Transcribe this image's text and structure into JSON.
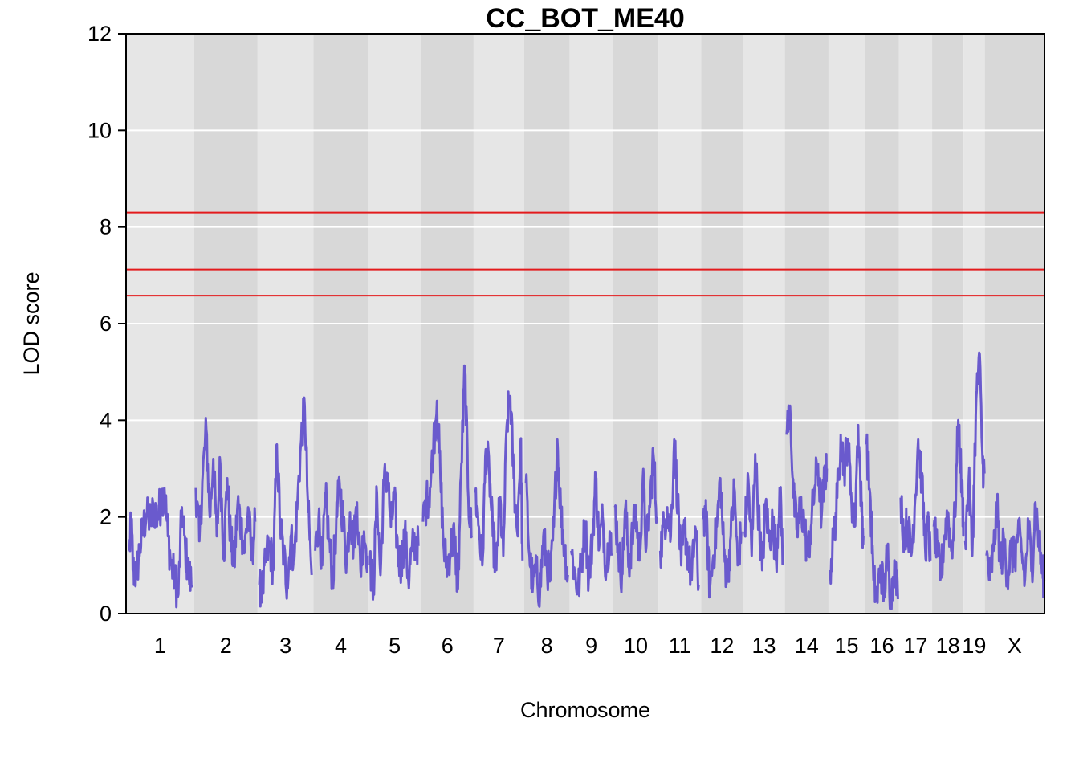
{
  "chart_data": {
    "type": "line",
    "title": "CC_BOT_ME40",
    "xlabel": "Chromosome",
    "ylabel": "LOD score",
    "ylim": [
      0,
      12
    ],
    "y_ticks": [
      0,
      2,
      4,
      6,
      8,
      10,
      12
    ],
    "gridlines": true,
    "legend": "none",
    "colors": {
      "series": "#6a5acd",
      "threshold": "#e31a1c",
      "band_light": "#e6e6e6",
      "band_dark": "#d8d8d8",
      "grid": "#ffffff"
    },
    "thresholds": [
      8.3,
      7.12,
      6.58
    ],
    "chromosomes": [
      {
        "label": "1",
        "start": 0,
        "end": 195,
        "peaks": [
          [
            10,
            1.3
          ],
          [
            15,
            1.9
          ],
          [
            20,
            0.9
          ],
          [
            30,
            0.8
          ],
          [
            40,
            1.4
          ],
          [
            50,
            1.8
          ],
          [
            60,
            2.1
          ],
          [
            70,
            1.9
          ],
          [
            80,
            2.2
          ],
          [
            90,
            2.0
          ],
          [
            100,
            2.3
          ],
          [
            110,
            2.6
          ],
          [
            120,
            1.6
          ],
          [
            130,
            1.0
          ],
          [
            140,
            0.7
          ],
          [
            150,
            0.4
          ],
          [
            160,
            2.2
          ],
          [
            170,
            1.3
          ],
          [
            180,
            0.8
          ],
          [
            190,
            0.6
          ]
        ]
      },
      {
        "label": "2",
        "start": 195,
        "end": 377,
        "peaks": [
          [
            5,
            2.6
          ],
          [
            15,
            1.5
          ],
          [
            25,
            2.9
          ],
          [
            35,
            3.8
          ],
          [
            45,
            2.0
          ],
          [
            55,
            3.2
          ],
          [
            65,
            1.6
          ],
          [
            75,
            3.1
          ],
          [
            85,
            1.2
          ],
          [
            95,
            2.8
          ],
          [
            105,
            1.5
          ],
          [
            115,
            1.0
          ],
          [
            125,
            2.3
          ],
          [
            135,
            1.8
          ],
          [
            145,
            1.3
          ],
          [
            155,
            2.2
          ],
          [
            165,
            1.1
          ],
          [
            175,
            1.9
          ]
        ]
      },
      {
        "label": "3",
        "start": 377,
        "end": 537,
        "peaks": [
          [
            5,
            0.6
          ],
          [
            15,
            0.5
          ],
          [
            25,
            1.2
          ],
          [
            35,
            1.4
          ],
          [
            45,
            0.9
          ],
          [
            55,
            3.5
          ],
          [
            65,
            1.8
          ],
          [
            75,
            1.2
          ],
          [
            85,
            0.6
          ],
          [
            95,
            1.6
          ],
          [
            105,
            1.1
          ],
          [
            115,
            2.4
          ],
          [
            125,
            3.6
          ],
          [
            135,
            4.3
          ],
          [
            145,
            2.1
          ],
          [
            155,
            0.8
          ]
        ]
      },
      {
        "label": "4",
        "start": 537,
        "end": 694,
        "peaks": [
          [
            5,
            1.3
          ],
          [
            15,
            2.0
          ],
          [
            25,
            1.0
          ],
          [
            35,
            2.4
          ],
          [
            45,
            1.5
          ],
          [
            55,
            0.7
          ],
          [
            65,
            1.8
          ],
          [
            75,
            2.7
          ],
          [
            85,
            1.9
          ],
          [
            95,
            1.1
          ],
          [
            105,
            2.1
          ],
          [
            115,
            1.4
          ],
          [
            125,
            2.3
          ],
          [
            135,
            0.9
          ],
          [
            145,
            1.7
          ],
          [
            155,
            1.2
          ]
        ]
      },
      {
        "label": "5",
        "start": 694,
        "end": 846,
        "peaks": [
          [
            5,
            1.0
          ],
          [
            15,
            0.5
          ],
          [
            25,
            2.5
          ],
          [
            35,
            0.8
          ],
          [
            45,
            2.7
          ],
          [
            55,
            2.9
          ],
          [
            65,
            1.8
          ],
          [
            75,
            2.4
          ],
          [
            85,
            1.2
          ],
          [
            95,
            1.0
          ],
          [
            105,
            1.7
          ],
          [
            115,
            0.7
          ],
          [
            125,
            1.3
          ],
          [
            135,
            1.5
          ],
          [
            145,
            1.4
          ]
        ]
      },
      {
        "label": "6",
        "start": 846,
        "end": 996,
        "peaks": [
          [
            5,
            1.9
          ],
          [
            15,
            2.3
          ],
          [
            25,
            2.6
          ],
          [
            35,
            3.5
          ],
          [
            45,
            4.4
          ],
          [
            55,
            2.8
          ],
          [
            65,
            1.3
          ],
          [
            75,
            1.0
          ],
          [
            85,
            1.4
          ],
          [
            95,
            1.6
          ],
          [
            105,
            0.5
          ],
          [
            115,
            3.1
          ],
          [
            125,
            5.1
          ],
          [
            135,
            2.4
          ],
          [
            145,
            1.6
          ]
        ]
      },
      {
        "label": "7",
        "start": 996,
        "end": 1141,
        "peaks": [
          [
            5,
            2.5
          ],
          [
            15,
            1.8
          ],
          [
            25,
            1.0
          ],
          [
            35,
            3.4
          ],
          [
            45,
            2.9
          ],
          [
            55,
            1.6
          ],
          [
            65,
            0.9
          ],
          [
            75,
            2.4
          ],
          [
            85,
            1.2
          ],
          [
            95,
            3.9
          ],
          [
            105,
            4.5
          ],
          [
            115,
            2.8
          ],
          [
            125,
            1.7
          ],
          [
            135,
            3.6
          ],
          [
            140,
            1.1
          ]
        ]
      },
      {
        "label": "8",
        "start": 1141,
        "end": 1271,
        "peaks": [
          [
            5,
            2.7
          ],
          [
            15,
            1.2
          ],
          [
            25,
            0.6
          ],
          [
            35,
            0.9
          ],
          [
            45,
            0.4
          ],
          [
            55,
            1.6
          ],
          [
            65,
            1.0
          ],
          [
            75,
            0.7
          ],
          [
            85,
            1.8
          ],
          [
            95,
            3.6
          ],
          [
            105,
            2.1
          ],
          [
            115,
            1.4
          ],
          [
            125,
            0.8
          ]
        ]
      },
      {
        "label": "9",
        "start": 1271,
        "end": 1396,
        "peaks": [
          [
            5,
            1.3
          ],
          [
            15,
            0.8
          ],
          [
            25,
            0.5
          ],
          [
            35,
            1.1
          ],
          [
            45,
            1.9
          ],
          [
            55,
            0.7
          ],
          [
            65,
            1.5
          ],
          [
            75,
            2.8
          ],
          [
            85,
            1.4
          ],
          [
            95,
            2.0
          ],
          [
            105,
            0.9
          ],
          [
            115,
            1.7
          ],
          [
            120,
            1.2
          ]
        ]
      },
      {
        "label": "10",
        "start": 1396,
        "end": 1526,
        "peaks": [
          [
            5,
            2.2
          ],
          [
            15,
            1.3
          ],
          [
            25,
            0.8
          ],
          [
            35,
            2.2
          ],
          [
            45,
            1.0
          ],
          [
            55,
            1.6
          ],
          [
            65,
            2.1
          ],
          [
            75,
            1.1
          ],
          [
            85,
            2.8
          ],
          [
            95,
            1.4
          ],
          [
            105,
            2.2
          ],
          [
            115,
            3.3
          ],
          [
            125,
            2.0
          ]
        ]
      },
      {
        "label": "11",
        "start": 1526,
        "end": 1648,
        "peaks": [
          [
            5,
            1.3
          ],
          [
            15,
            1.8
          ],
          [
            25,
            2.2
          ],
          [
            35,
            1.6
          ],
          [
            45,
            3.6
          ],
          [
            55,
            2.3
          ],
          [
            65,
            1.0
          ],
          [
            75,
            1.8
          ],
          [
            85,
            1.2
          ],
          [
            95,
            0.7
          ],
          [
            105,
            1.8
          ],
          [
            115,
            0.6
          ]
        ]
      },
      {
        "label": "12",
        "start": 1648,
        "end": 1768,
        "peaks": [
          [
            5,
            2.1
          ],
          [
            15,
            1.9
          ],
          [
            25,
            0.5
          ],
          [
            35,
            1.2
          ],
          [
            45,
            1.8
          ],
          [
            55,
            2.8
          ],
          [
            65,
            1.3
          ],
          [
            75,
            0.7
          ],
          [
            85,
            1.6
          ],
          [
            95,
            2.6
          ],
          [
            105,
            1.0
          ],
          [
            115,
            1.7
          ]
        ]
      },
      {
        "label": "13",
        "start": 1768,
        "end": 1888,
        "peaks": [
          [
            5,
            1.7
          ],
          [
            15,
            2.8
          ],
          [
            25,
            1.2
          ],
          [
            35,
            3.3
          ],
          [
            45,
            2.0
          ],
          [
            55,
            0.9
          ],
          [
            65,
            2.3
          ],
          [
            75,
            1.5
          ],
          [
            85,
            1.9
          ],
          [
            95,
            1.1
          ],
          [
            105,
            2.6
          ],
          [
            115,
            1.2
          ]
        ]
      },
      {
        "label": "14",
        "start": 1888,
        "end": 2013,
        "peaks": [
          [
            5,
            3.7
          ],
          [
            15,
            4.3
          ],
          [
            25,
            2.4
          ],
          [
            35,
            1.7
          ],
          [
            45,
            2.2
          ],
          [
            55,
            1.9
          ],
          [
            65,
            1.2
          ],
          [
            75,
            1.8
          ],
          [
            85,
            2.6
          ],
          [
            95,
            3.1
          ],
          [
            105,
            2.0
          ],
          [
            115,
            2.9
          ],
          [
            120,
            3.0
          ]
        ]
      },
      {
        "label": "15",
        "start": 2013,
        "end": 2117,
        "peaks": [
          [
            5,
            0.9
          ],
          [
            15,
            1.6
          ],
          [
            25,
            2.4
          ],
          [
            35,
            3.7
          ],
          [
            45,
            3.0
          ],
          [
            55,
            3.6
          ],
          [
            65,
            2.5
          ],
          [
            75,
            1.8
          ],
          [
            85,
            3.9
          ],
          [
            95,
            2.1
          ],
          [
            100,
            1.6
          ]
        ]
      },
      {
        "label": "16",
        "start": 2117,
        "end": 2215,
        "peaks": [
          [
            5,
            3.5
          ],
          [
            15,
            2.5
          ],
          [
            25,
            0.7
          ],
          [
            35,
            0.3
          ],
          [
            45,
            1.0
          ],
          [
            55,
            0.4
          ],
          [
            65,
            1.3
          ],
          [
            75,
            0.2
          ],
          [
            85,
            1.1
          ],
          [
            95,
            0.3
          ]
        ]
      },
      {
        "label": "17",
        "start": 2215,
        "end": 2310,
        "peaks": [
          [
            5,
            2.4
          ],
          [
            15,
            1.6
          ],
          [
            25,
            1.9
          ],
          [
            35,
            1.2
          ],
          [
            45,
            2.2
          ],
          [
            55,
            3.6
          ],
          [
            65,
            2.8
          ],
          [
            75,
            1.4
          ],
          [
            85,
            1.8
          ],
          [
            90,
            1.1
          ]
        ]
      },
      {
        "label": "18",
        "start": 2310,
        "end": 2400,
        "peaks": [
          [
            5,
            1.8
          ],
          [
            15,
            1.2
          ],
          [
            25,
            0.8
          ],
          [
            35,
            1.6
          ],
          [
            45,
            2.1
          ],
          [
            55,
            1.3
          ],
          [
            65,
            2.0
          ],
          [
            75,
            4.0
          ],
          [
            85,
            2.6
          ],
          [
            90,
            1.9
          ]
        ]
      },
      {
        "label": "19",
        "start": 2400,
        "end": 2461,
        "peaks": [
          [
            5,
            1.5
          ],
          [
            15,
            2.8
          ],
          [
            25,
            1.2
          ],
          [
            35,
            4.1
          ],
          [
            45,
            5.4
          ],
          [
            55,
            3.1
          ],
          [
            60,
            2.9
          ]
        ]
      },
      {
        "label": "X",
        "start": 2461,
        "end": 2632,
        "peaks": [
          [
            5,
            1.2
          ],
          [
            15,
            0.7
          ],
          [
            25,
            1.3
          ],
          [
            35,
            2.2
          ],
          [
            45,
            1.0
          ],
          [
            55,
            1.5
          ],
          [
            65,
            0.8
          ],
          [
            75,
            1.3
          ],
          [
            85,
            1.1
          ],
          [
            95,
            1.7
          ],
          [
            105,
            1.3
          ],
          [
            115,
            0.7
          ],
          [
            125,
            1.8
          ],
          [
            135,
            0.9
          ],
          [
            145,
            2.3
          ],
          [
            155,
            1.5
          ],
          [
            165,
            0.9
          ],
          [
            170,
            0.7
          ]
        ]
      }
    ]
  }
}
